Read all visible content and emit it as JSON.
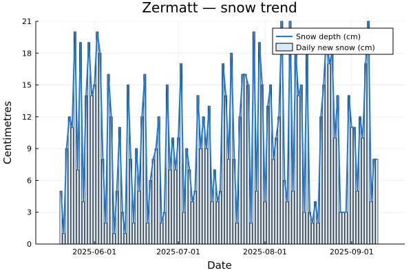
{
  "chart_data": {
    "type": "bar",
    "title": "Zermatt — snow trend",
    "xlabel": "Date",
    "ylabel": "Centimetres",
    "x_start": "2025-05-20",
    "values": [
      5,
      1,
      9,
      12,
      11,
      20,
      7,
      19,
      4,
      14,
      19,
      14,
      15,
      20,
      18,
      8,
      2,
      16,
      12,
      1,
      5,
      11,
      3,
      1,
      15,
      8,
      2,
      9,
      5,
      12,
      16,
      2,
      6,
      8,
      9,
      12,
      2,
      3,
      15,
      7,
      10,
      7,
      10,
      17,
      3,
      9,
      7,
      4,
      5,
      14,
      9,
      12,
      9,
      13,
      4,
      7,
      4,
      5,
      17,
      14,
      8,
      18,
      8,
      2,
      12,
      16,
      16,
      15,
      2,
      20,
      5,
      19,
      15,
      4,
      13,
      15,
      8,
      10,
      12,
      21,
      6,
      4,
      21,
      5,
      18,
      14,
      15,
      3,
      18,
      3,
      2,
      4,
      2,
      12,
      15,
      20,
      17,
      18,
      10,
      14,
      3,
      3,
      3,
      14,
      11,
      11,
      5,
      12,
      10,
      17,
      21,
      4,
      8,
      8
    ],
    "series": [
      {
        "name": "Snow depth (cm)",
        "type": "line",
        "color": "#1f77d4"
      },
      {
        "name": "Daily new snow (cm)",
        "type": "bar",
        "color": "#d6e9f8"
      }
    ],
    "x_ticks": [
      "2025-06-01",
      "2025-07-01",
      "2025-08-01",
      "2025-09-01"
    ],
    "y_ticks": [
      0,
      3,
      6,
      9,
      12,
      15,
      18,
      21
    ],
    "ylim": [
      0,
      21
    ],
    "xlim": [
      "2025-05-11",
      "2025-09-20"
    ],
    "grid": true,
    "legend_position": "top-right"
  }
}
